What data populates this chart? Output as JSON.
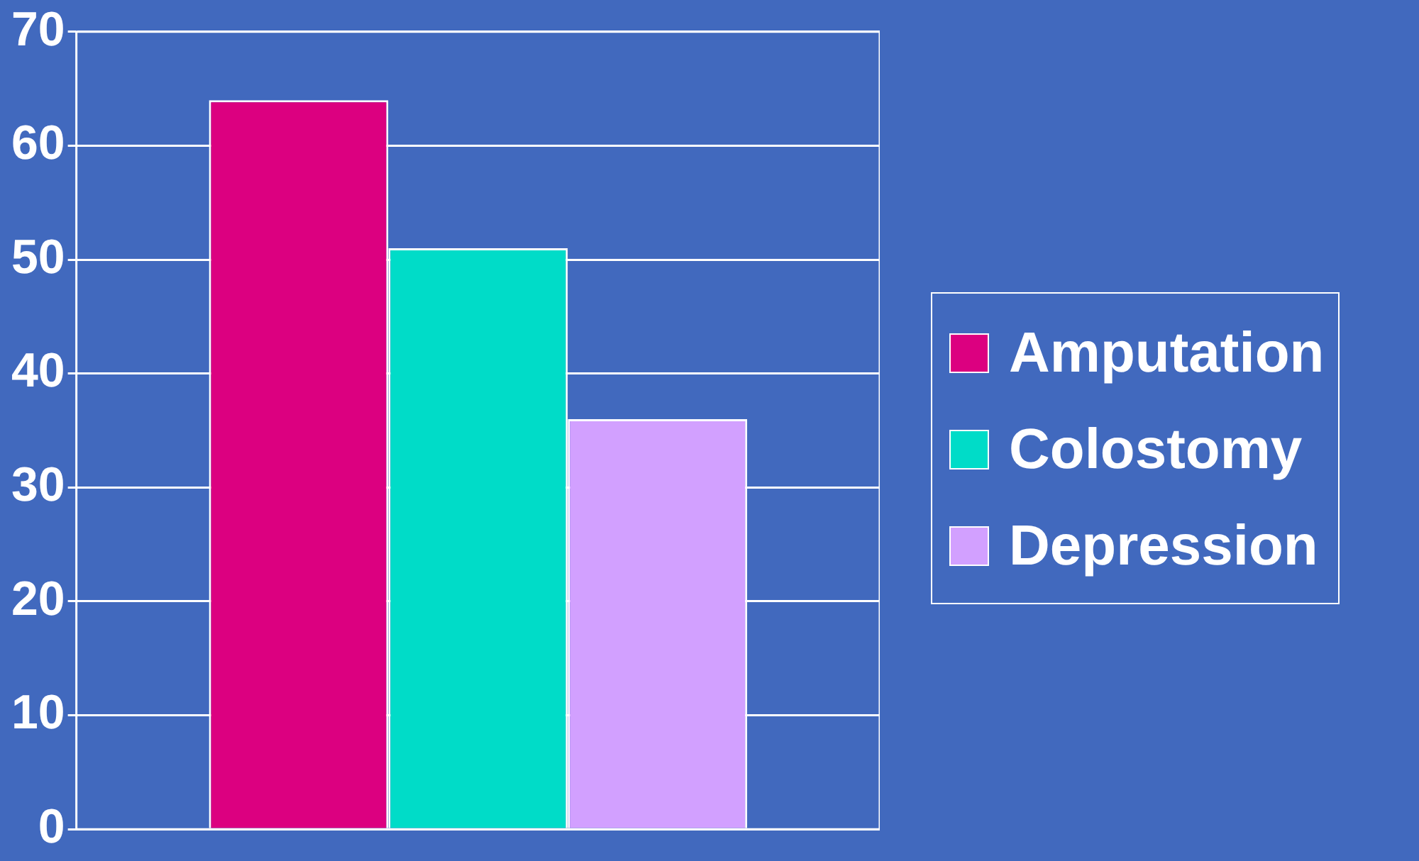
{
  "chart_data": {
    "type": "bar",
    "categories": [
      null
    ],
    "series": [
      {
        "name": "Amputation",
        "color": "#dc0080",
        "values": [
          64
        ]
      },
      {
        "name": "Colostomy",
        "color": "#00dcc8",
        "values": [
          51
        ]
      },
      {
        "name": "Depression",
        "color": "#d2a0ff",
        "values": [
          36
        ]
      }
    ],
    "ylim": [
      0,
      70
    ],
    "yticks": [
      0,
      10,
      20,
      30,
      40,
      50,
      60,
      70
    ],
    "grid": "y",
    "legend": "right"
  }
}
